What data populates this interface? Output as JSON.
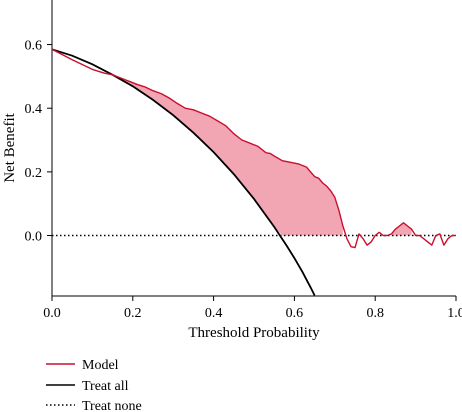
{
  "chart_data": {
    "type": "line",
    "xlabel": "Threshold Probability",
    "ylabel": "Net Benefit",
    "xlim": [
      0.0,
      1.0
    ],
    "ylim": [
      -0.19,
      0.74
    ],
    "xticks": [
      "0.0",
      "0.2",
      "0.4",
      "0.6",
      "0.8",
      "1.0"
    ],
    "yticks": [
      "0.0",
      "0.2",
      "0.4",
      "0.6"
    ],
    "grid": false,
    "legend_position": "bottom-left",
    "series": [
      {
        "name": "Model",
        "style": "solid",
        "color": "#c8102e",
        "x": [
          0.0,
          0.05,
          0.1,
          0.13,
          0.15,
          0.17,
          0.19,
          0.21,
          0.23,
          0.25,
          0.27,
          0.29,
          0.31,
          0.33,
          0.35,
          0.37,
          0.39,
          0.41,
          0.43,
          0.45,
          0.47,
          0.49,
          0.51,
          0.53,
          0.54,
          0.55,
          0.57,
          0.59,
          0.61,
          0.63,
          0.64,
          0.65,
          0.66,
          0.67,
          0.68,
          0.69,
          0.7,
          0.71,
          0.72,
          0.73,
          0.74,
          0.75,
          0.76,
          0.77,
          0.78,
          0.79,
          0.8,
          0.81,
          0.82,
          0.83,
          0.84,
          0.85,
          0.86,
          0.87,
          0.88,
          0.89,
          0.9,
          0.91,
          0.92,
          0.93,
          0.94,
          0.95,
          0.96,
          0.97,
          0.98,
          0.99,
          1.0
        ],
        "y": [
          0.585,
          0.552,
          0.522,
          0.51,
          0.505,
          0.495,
          0.485,
          0.475,
          0.467,
          0.455,
          0.446,
          0.432,
          0.415,
          0.4,
          0.395,
          0.385,
          0.375,
          0.36,
          0.345,
          0.32,
          0.3,
          0.29,
          0.28,
          0.26,
          0.258,
          0.25,
          0.235,
          0.23,
          0.225,
          0.215,
          0.2,
          0.185,
          0.18,
          0.165,
          0.155,
          0.14,
          0.12,
          0.08,
          0.03,
          -0.01,
          -0.035,
          -0.038,
          0.005,
          -0.01,
          -0.03,
          -0.02,
          0.0,
          0.01,
          0.0,
          0.0,
          0.005,
          0.02,
          0.03,
          0.04,
          0.03,
          0.02,
          0.0,
          0.0,
          -0.01,
          -0.02,
          -0.03,
          0.0,
          0.005,
          -0.03,
          -0.01,
          0.0,
          0.0
        ]
      },
      {
        "name": "Treat all",
        "style": "solid",
        "color": "#000000",
        "x": [
          0.0,
          0.05,
          0.1,
          0.15,
          0.2,
          0.25,
          0.3,
          0.35,
          0.4,
          0.45,
          0.5,
          0.55,
          0.58,
          0.6,
          0.62,
          0.64,
          0.65
        ],
        "y": [
          0.585,
          0.565,
          0.538,
          0.505,
          0.469,
          0.426,
          0.378,
          0.323,
          0.262,
          0.193,
          0.115,
          0.027,
          -0.03,
          -0.071,
          -0.115,
          -0.163,
          -0.188
        ]
      },
      {
        "name": "Treat none",
        "style": "dotted",
        "color": "#000000",
        "x": [
          0.0,
          1.0
        ],
        "y": [
          0.0,
          0.0
        ]
      }
    ]
  }
}
